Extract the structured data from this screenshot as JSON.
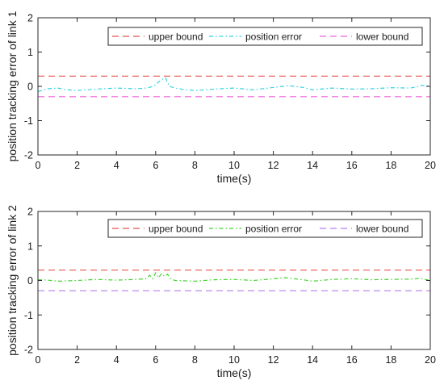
{
  "chart_data": [
    {
      "type": "line",
      "xlabel": "time(s)",
      "ylabel": "position tracking error of link 1",
      "xlim": [
        0,
        20
      ],
      "ylim": [
        -2,
        2
      ],
      "xticks": [
        0,
        2,
        4,
        6,
        8,
        10,
        12,
        14,
        16,
        18,
        20
      ],
      "yticks": [
        2,
        1,
        0,
        -1,
        -2
      ],
      "grid": false,
      "legend_placement": "top-right",
      "series": [
        {
          "name": "upper bound",
          "color": "#e8544f",
          "dash": "long-dash",
          "x": [
            0,
            20
          ],
          "y": [
            0.3,
            0.3
          ]
        },
        {
          "name": "position error",
          "color": "#2fd3e0",
          "dash": "dash-dot",
          "x": [
            0,
            0.5,
            1,
            1.5,
            2,
            3,
            4,
            5,
            5.5,
            5.9,
            6.1,
            6.3,
            6.5,
            6.7,
            7,
            7.5,
            8,
            9,
            10,
            11,
            12,
            12.8,
            13.5,
            14,
            15,
            16,
            17,
            18,
            19,
            19.6,
            20
          ],
          "y": [
            -0.15,
            -0.07,
            -0.05,
            -0.1,
            -0.12,
            -0.08,
            -0.05,
            -0.07,
            -0.05,
            0.0,
            0.1,
            0.2,
            0.25,
            0.0,
            -0.05,
            -0.1,
            -0.12,
            -0.08,
            -0.05,
            -0.1,
            -0.03,
            0.02,
            -0.03,
            -0.1,
            -0.05,
            -0.08,
            -0.07,
            -0.04,
            -0.05,
            0.03,
            0.0
          ]
        },
        {
          "name": "lower bound",
          "color": "#f060d8",
          "dash": "long-dash",
          "x": [
            0,
            20
          ],
          "y": [
            -0.3,
            -0.3
          ]
        }
      ]
    },
    {
      "type": "line",
      "xlabel": "time(s)",
      "ylabel": "position tracking error of link 2",
      "xlim": [
        0,
        20
      ],
      "ylim": [
        -2,
        2
      ],
      "xticks": [
        0,
        2,
        4,
        6,
        8,
        10,
        12,
        14,
        16,
        18,
        20
      ],
      "yticks": [
        2,
        1,
        0,
        -1,
        -2
      ],
      "grid": false,
      "legend_placement": "top-right",
      "series": [
        {
          "name": "upper bound",
          "color": "#e8544f",
          "dash": "long-dash",
          "x": [
            0,
            20
          ],
          "y": [
            0.3,
            0.3
          ]
        },
        {
          "name": "position error",
          "color": "#3fd42b",
          "dash": "dash-dot",
          "x": [
            0,
            0.5,
            1,
            2,
            3,
            4,
            5,
            5.5,
            5.7,
            5.85,
            6.0,
            6.15,
            6.3,
            6.45,
            6.6,
            6.8,
            7,
            8,
            9,
            10,
            11,
            12,
            12.6,
            13.5,
            14,
            15,
            16,
            17,
            18,
            19,
            19.5,
            20
          ],
          "y": [
            0.02,
            0.01,
            -0.02,
            0.0,
            0.03,
            0.01,
            0.03,
            0.05,
            0.15,
            0.05,
            0.22,
            0.08,
            0.2,
            0.12,
            0.18,
            0.03,
            0.0,
            -0.02,
            0.02,
            0.03,
            0.0,
            0.05,
            0.08,
            0.02,
            -0.02,
            0.03,
            0.05,
            0.02,
            0.03,
            0.04,
            0.06,
            0.0
          ]
        },
        {
          "name": "lower bound",
          "color": "#b07ff0",
          "dash": "long-dash",
          "x": [
            0,
            20
          ],
          "y": [
            -0.3,
            -0.3
          ]
        }
      ]
    }
  ]
}
